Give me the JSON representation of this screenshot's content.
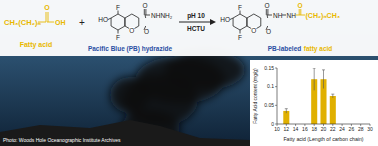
{
  "chart_data": {
    "type": "bar",
    "x": [
      12,
      18,
      20,
      22
    ],
    "values": [
      0.035,
      0.12,
      0.12,
      0.075
    ],
    "errors": [
      0.006,
      0.03,
      0.025,
      0.005
    ],
    "color": "#e0b000",
    "xlim": [
      10,
      30
    ],
    "xticks": [
      10,
      12,
      14,
      16,
      18,
      20,
      22,
      24,
      26,
      28,
      30
    ],
    "ylim": [
      0,
      0.15
    ],
    "yticks": [
      0,
      0.05,
      0.1,
      0.15
    ],
    "x_label": "Fatty acid (Length of carbon chain)",
    "y_label": "Fatty Acid content (mg/g)"
  },
  "scheme": {
    "fatty_acid": {
      "formula": "CH₃(CH₂)ₙ",
      "atoms": [
        "O",
        "OH"
      ],
      "label": "Fatty acid"
    },
    "plus": "+",
    "hydrazide": {
      "atoms": [
        "HO",
        "F",
        "F",
        "O",
        "O",
        "O",
        "NHNH₂"
      ],
      "label": "Pacific Blue (PB) hydrazide"
    },
    "conditions": [
      "pH 10",
      "HCTU"
    ],
    "product": {
      "atoms": [
        "HO",
        "F",
        "F",
        "O",
        "O",
        "O",
        "NH",
        "NH",
        "O"
      ],
      "chain": "(CH₂)ₙCH₃",
      "label_parts": [
        "PB-labeled",
        "fatty acid"
      ]
    }
  },
  "credit": "Photo: Woods Hole Oceanographic Institute Archives"
}
